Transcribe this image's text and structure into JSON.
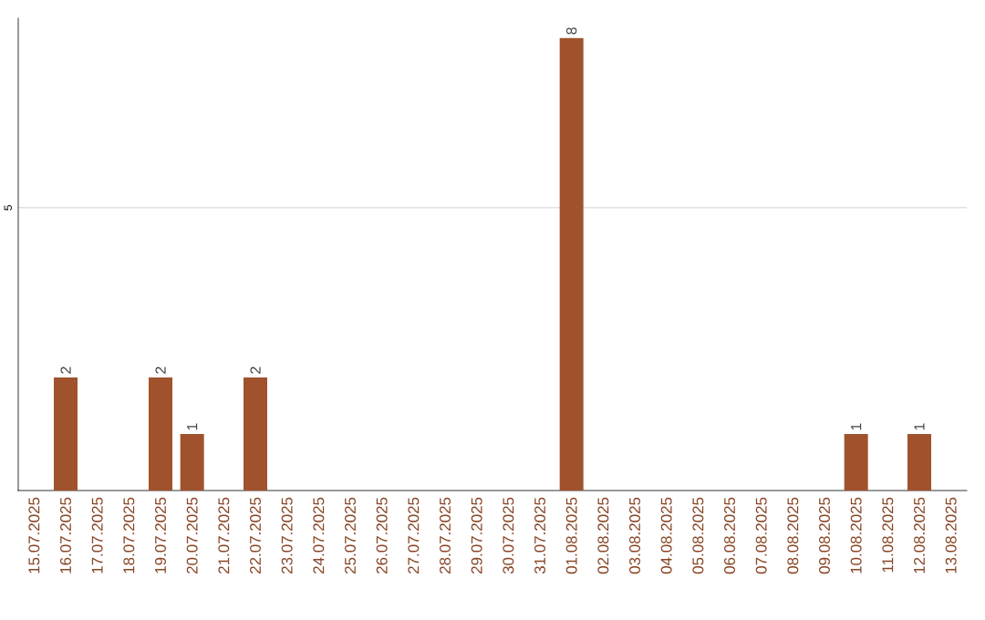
{
  "chart_data": {
    "type": "bar",
    "categories": [
      "15.07.2025",
      "16.07.2025",
      "17.07.2025",
      "18.07.2025",
      "19.07.2025",
      "20.07.2025",
      "21.07.2025",
      "22.07.2025",
      "23.07.2025",
      "24.07.2025",
      "25.07.2025",
      "26.07.2025",
      "27.07.2025",
      "28.07.2025",
      "29.07.2025",
      "30.07.2025",
      "31.07.2025",
      "01.08.2025",
      "02.08.2025",
      "03.08.2025",
      "04.08.2025",
      "05.08.2025",
      "06.08.2025",
      "07.08.2025",
      "08.08.2025",
      "09.08.2025",
      "10.08.2025",
      "11.08.2025",
      "12.08.2025",
      "13.08.2025"
    ],
    "values": [
      0,
      2,
      0,
      0,
      2,
      1,
      0,
      2,
      0,
      0,
      0,
      0,
      0,
      0,
      0,
      0,
      0,
      8,
      0,
      0,
      0,
      0,
      0,
      0,
      0,
      0,
      1,
      0,
      1,
      0
    ],
    "value_labels": [
      null,
      "2",
      null,
      null,
      "2",
      "1",
      null,
      "2",
      null,
      null,
      null,
      null,
      null,
      null,
      null,
      null,
      null,
      "8",
      null,
      null,
      null,
      null,
      null,
      null,
      null,
      null,
      "1",
      null,
      "1",
      null
    ],
    "color": "#a0522d",
    "ylim": [
      0,
      8.35
    ],
    "yticks": [
      5
    ],
    "grid": "y"
  }
}
